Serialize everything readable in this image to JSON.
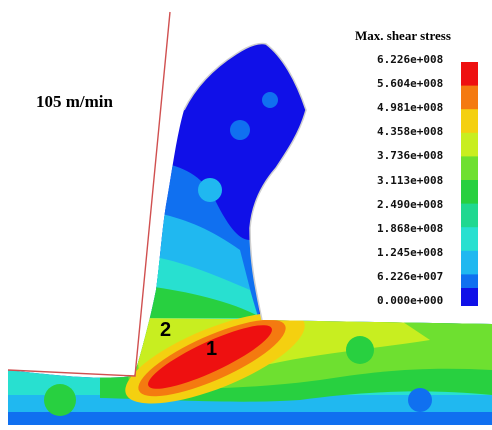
{
  "figure": {
    "speed_label": "105 m/min",
    "colorbar_title": "Max. shear stress",
    "colorbar_values": [
      "6.226e+008",
      "5.604e+008",
      "4.981e+008",
      "4.358e+008",
      "3.736e+008",
      "3.113e+008",
      "2.490e+008",
      "1.868e+008",
      "1.245e+008",
      "6.226e+007",
      "0.000e+000"
    ],
    "colorbar_colors": [
      "#ee1010",
      "#f47a10",
      "#f4d010",
      "#c8ee20",
      "#6ee030",
      "#28d040",
      "#20d890",
      "#28e0d0",
      "#20b8f0",
      "#1070f0",
      "#1010e8"
    ],
    "zone_labels": [
      "1",
      "2"
    ]
  }
}
